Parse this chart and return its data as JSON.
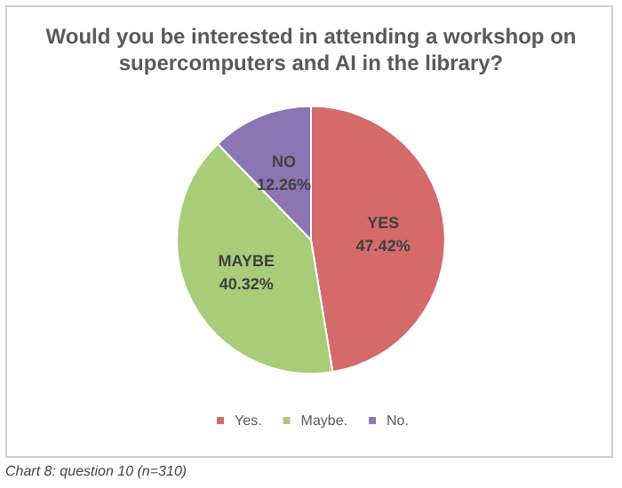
{
  "chart_data": {
    "type": "pie",
    "title": "Would you be interested in attending a workshop on\nsupercomputers and AI in the library?",
    "categories": [
      "Yes.",
      "Maybe.",
      "No."
    ],
    "values": [
      47.42,
      40.32,
      12.26
    ],
    "colors": [
      "#d46a6a",
      "#a9cc78",
      "#8b76b3"
    ],
    "value_labels": [
      "YES\n47.42%",
      "MAYBE\n40.32%",
      "NO\n12.26%"
    ],
    "legend": "bottom",
    "annotations": [
      "Chart 8: question 10 (n=310)"
    ]
  }
}
